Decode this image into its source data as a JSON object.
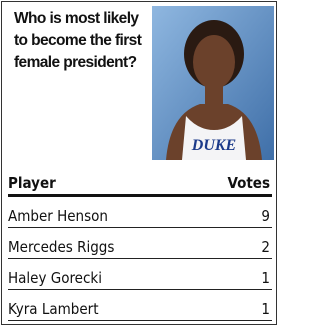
{
  "question": "Who is most likely to become the first female president?",
  "photo": {
    "jersey": "DUKE"
  },
  "table": {
    "headers": [
      "Player",
      "Votes"
    ],
    "rows": [
      [
        "Amber Henson",
        9
      ],
      [
        "Mercedes Riggs",
        2
      ],
      [
        "Haley Gorecki",
        1
      ],
      [
        "Kyra Lambert",
        1
      ]
    ]
  }
}
